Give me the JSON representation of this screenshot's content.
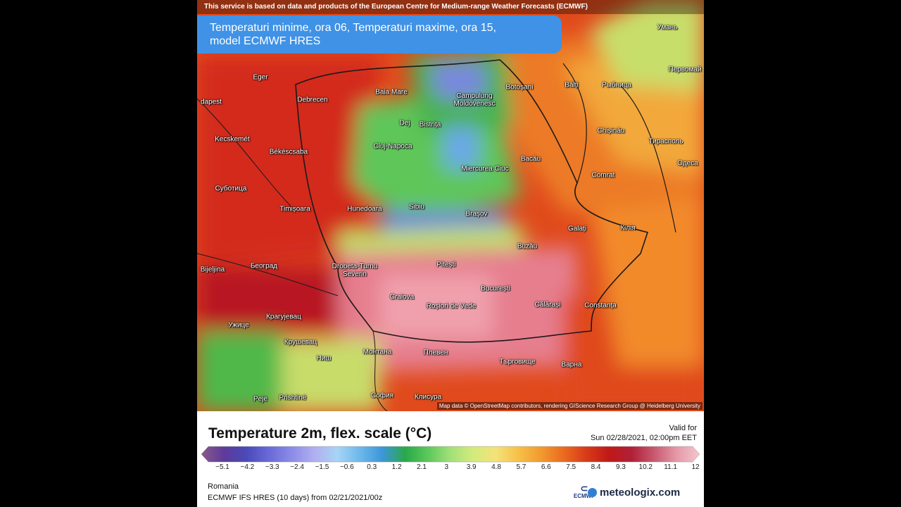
{
  "map": {
    "source_note": "This service is based on data and products of the European Centre for Medium-range Weather Forecasts (ECMWF)",
    "title_line1": "Temperaturi minime, ora 06, Temperaturi maxime, ora 15,",
    "title_line2": "model ECMWF HRES",
    "attribution": "Map data © OpenStreetMap contributors, rendering GIScience Research Group @ Heidelberg University",
    "cities": [
      {
        "name": "Eger"
      },
      {
        "name": "dapest"
      },
      {
        "name": "Debrecen"
      },
      {
        "name": "Baia Mare"
      },
      {
        "name": "Campulung Moldovenesc"
      },
      {
        "name": "Botoșani"
      },
      {
        "name": "Bălți"
      },
      {
        "name": "Рыбница"
      },
      {
        "name": "Умань"
      },
      {
        "name": "Первомай"
      },
      {
        "name": "Kecskemét"
      },
      {
        "name": "Dej"
      },
      {
        "name": "Bistrița"
      },
      {
        "name": "Chișinău"
      },
      {
        "name": "Тирасполь"
      },
      {
        "name": "Békéscsaba"
      },
      {
        "name": "Cluj-Napoca"
      },
      {
        "name": "Bacău"
      },
      {
        "name": "Miercurea Ciuc"
      },
      {
        "name": "Одеса"
      },
      {
        "name": "Comrat"
      },
      {
        "name": "Суботица"
      },
      {
        "name": "Timișoara"
      },
      {
        "name": "Hunedoara"
      },
      {
        "name": "Sibiu"
      },
      {
        "name": "Brașov"
      },
      {
        "name": "Galați"
      },
      {
        "name": "Кілія"
      },
      {
        "name": "Buzău"
      },
      {
        "name": "Београд"
      },
      {
        "name": "Drobeta-Turnu Severin"
      },
      {
        "name": "Pitești"
      },
      {
        "name": "Bijeljina"
      },
      {
        "name": "București"
      },
      {
        "name": "Craiova"
      },
      {
        "name": "Roșiori de Vede"
      },
      {
        "name": "Călărași"
      },
      {
        "name": "Constanța"
      },
      {
        "name": "Крагујевац"
      },
      {
        "name": "Ужице"
      },
      {
        "name": "Крушевац"
      },
      {
        "name": "Монтана"
      },
      {
        "name": "Плевен"
      },
      {
        "name": "Търговище"
      },
      {
        "name": "Варна"
      },
      {
        "name": "Ниш"
      },
      {
        "name": "София"
      },
      {
        "name": "Клисура"
      },
      {
        "name": "Pejë"
      },
      {
        "name": "Prishtinë"
      }
    ]
  },
  "legend": {
    "title": "Temperature 2m, flex. scale (°C)",
    "valid_label": "Valid for",
    "valid_time": "Sun 02/28/2021, 02:00pm EET",
    "ticks": [
      "−5.1",
      "−4.2",
      "−3.3",
      "−2.4",
      "−1.5",
      "−0.6",
      "0.3",
      "1.2",
      "2.1",
      "3",
      "3.9",
      "4.8",
      "5.7",
      "6.6",
      "7.5",
      "8.4",
      "9.3",
      "10.2",
      "11.1",
      "12"
    ],
    "colors": [
      "#8a5a8a",
      "#5e3a9a",
      "#4a4ab8",
      "#6a6ad8",
      "#8c8ce8",
      "#b0b0f0",
      "#a8d4f4",
      "#6cb8ec",
      "#3c96d8",
      "#2aa84a",
      "#5cc85a",
      "#a2e07a",
      "#d4ea7c",
      "#f4e27a",
      "#f6c048",
      "#f29a30",
      "#ea6a20",
      "#d83a18",
      "#c01818",
      "#b02038",
      "#c85a70",
      "#e69aa8",
      "#f4c6ce"
    ]
  },
  "footer": {
    "region": "Romania",
    "model": "ECMWF IFS HRES (10 days) from 02/21/2021/00z",
    "ecmwf_logo": "ECMWF",
    "brand": "meteologix.com"
  }
}
